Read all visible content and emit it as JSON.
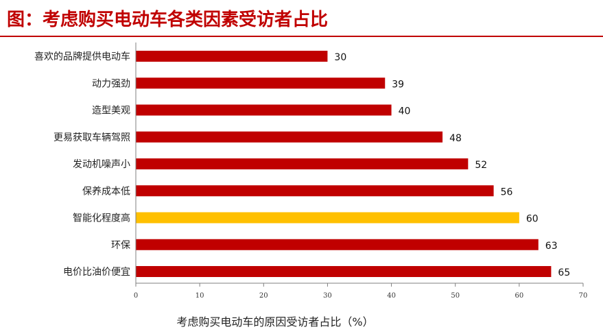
{
  "header": {
    "title": "图：考虑购买电动车各类因素受访者占比"
  },
  "colors": {
    "bar": "#c00000",
    "highlight": "#ffc000",
    "axis": "#7f7f7f",
    "title": "#c00000"
  },
  "chart_data": {
    "type": "bar",
    "orientation": "horizontal",
    "title": "图：考虑购买电动车各类因素受访者占比",
    "xlabel": "考虑购买电动车的原因受访者占比（%）",
    "ylabel": "",
    "categories": [
      "喜欢的品牌提供电动车",
      "动力强劲",
      "造型美观",
      "更易获取车辆驾照",
      "发动机噪声小",
      "保养成本低",
      "智能化程度高",
      "环保",
      "电价比油价便宜"
    ],
    "values": [
      30,
      39,
      40,
      48,
      52,
      56,
      60,
      63,
      65
    ],
    "highlight_category": "智能化程度高",
    "xlim": [
      0,
      70
    ],
    "xticks": [
      0,
      10,
      20,
      30,
      40,
      50,
      60,
      70
    ],
    "grid": false,
    "legend": "none"
  }
}
